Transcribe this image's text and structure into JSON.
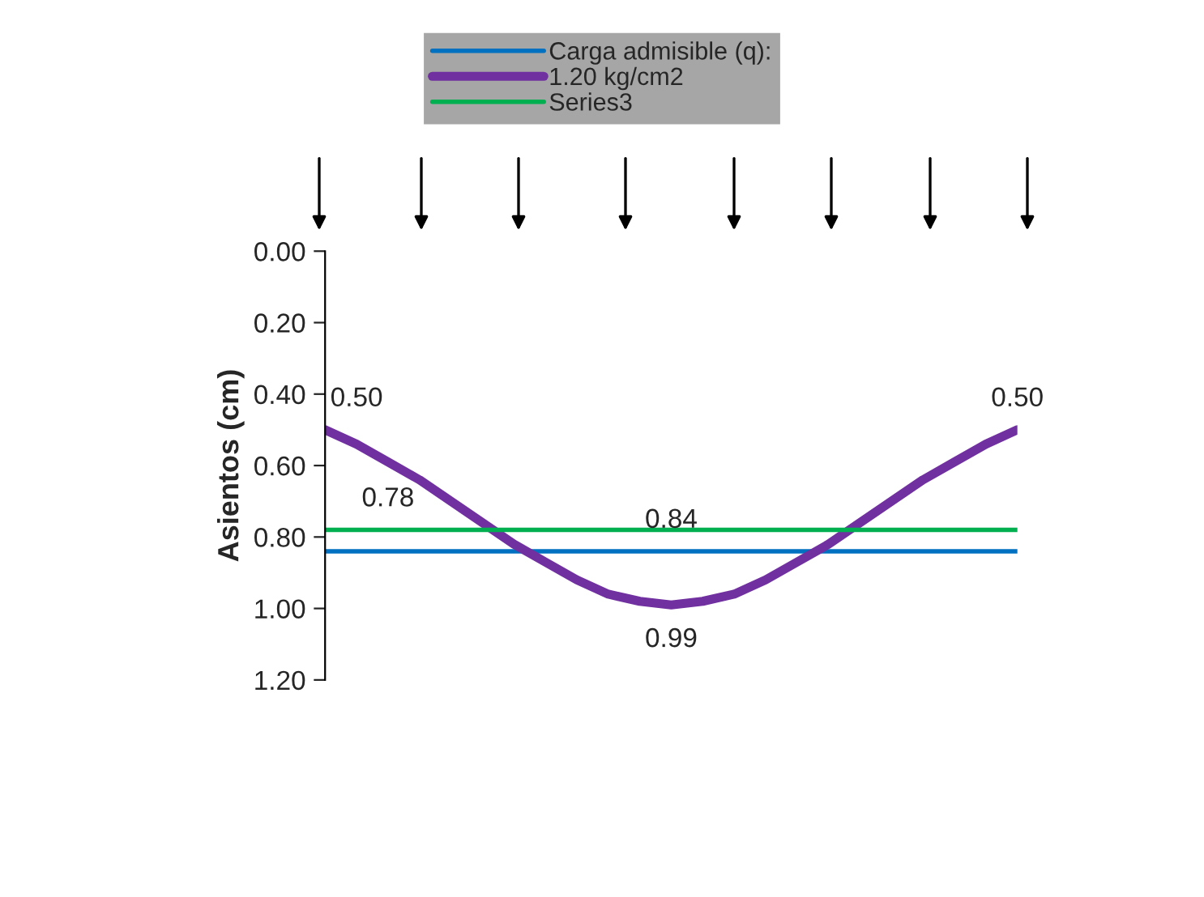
{
  "chart_data": {
    "type": "line",
    "ylabel": "Asientos (cm)",
    "categories": [
      null,
      null,
      null,
      null,
      null,
      null,
      null,
      null,
      null,
      null,
      null,
      null,
      null,
      null,
      null,
      null,
      null,
      null,
      null,
      null,
      null,
      null,
      null
    ],
    "series": [
      {
        "name": "Carga admisible (q):",
        "color": "#0070c0",
        "values": [
          0.84,
          0.84,
          0.84,
          0.84,
          0.84,
          0.84,
          0.84,
          0.84,
          0.84,
          0.84,
          0.84,
          0.84,
          0.84,
          0.84,
          0.84,
          0.84,
          0.84,
          0.84,
          0.84,
          0.84,
          0.84,
          0.84,
          0.84
        ],
        "value_labels": [
          null,
          null,
          null,
          null,
          null,
          null,
          null,
          null,
          null,
          null,
          null,
          "0.84",
          null,
          null,
          null,
          null,
          null,
          null,
          null,
          null,
          null,
          null,
          null
        ]
      },
      {
        "name": "1.20 kg/cm2",
        "color": "#7030a0",
        "values": [
          0.5,
          0.54,
          0.59,
          0.64,
          0.7,
          0.76,
          0.82,
          0.87,
          0.92,
          0.96,
          0.98,
          0.99,
          0.98,
          0.96,
          0.92,
          0.87,
          0.82,
          0.76,
          0.7,
          0.64,
          0.59,
          0.54,
          0.5
        ],
        "value_labels": [
          "0.50",
          null,
          null,
          null,
          null,
          null,
          null,
          null,
          null,
          null,
          null,
          "0.99",
          null,
          null,
          null,
          null,
          null,
          null,
          null,
          null,
          null,
          null,
          "0.50"
        ]
      },
      {
        "name": "Series3",
        "color": "#00b050",
        "values": [
          0.78,
          0.78,
          0.78,
          0.78,
          0.78,
          0.78,
          0.78,
          0.78,
          0.78,
          0.78,
          0.78,
          0.78,
          0.78,
          0.78,
          0.78,
          0.78,
          0.78,
          0.78,
          0.78,
          0.78,
          0.78,
          0.78,
          0.78
        ],
        "value_labels": [
          null,
          null,
          "0.78",
          null,
          null,
          null,
          null,
          null,
          null,
          null,
          null,
          null,
          null,
          null,
          null,
          null,
          null,
          null,
          null,
          null,
          null,
          null,
          null
        ]
      }
    ],
    "ylim": [
      1.2,
      0
    ],
    "yticks": [
      {
        "value": 0,
        "label": "0.00"
      },
      {
        "value": 0.2,
        "label": "0.20"
      },
      {
        "value": 0.4,
        "label": "0.40"
      },
      {
        "value": 0.6,
        "label": "0.60"
      },
      {
        "value": 0.8,
        "label": "0.80"
      },
      {
        "value": 1.0,
        "label": "1.00"
      },
      {
        "value": 1.2,
        "label": "1.20"
      }
    ],
    "tick_labels": "y",
    "grid": false,
    "legend": "top",
    "marker": "none",
    "line_style": "solid"
  }
}
